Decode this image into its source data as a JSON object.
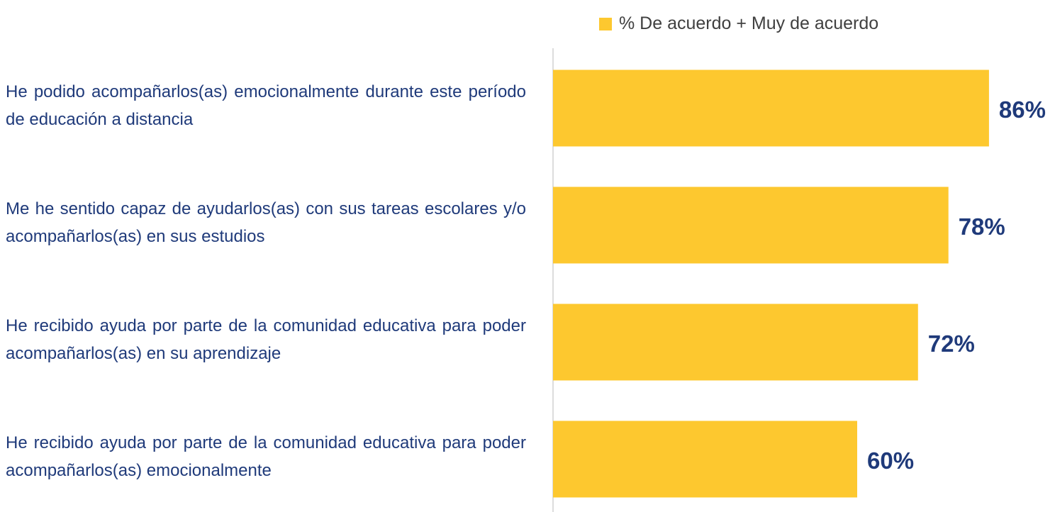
{
  "chart_data": {
    "type": "bar",
    "orientation": "horizontal",
    "legend": "% De acuerdo + Muy de acuerdo",
    "legend_position": "top-right",
    "categories": [
      "He podido acompañarlos(as) emocionalmente durante este período de educación a distancia",
      "Me he sentido capaz de ayudarlos(as) con sus tareas escolares y/o acompañarlos(as) en sus estudios",
      "He recibido ayuda por parte de la comunidad educativa para poder acompañarlos(as) en su aprendizaje",
      "He recibido ayuda por parte de la comunidad educativa para poder acompañarlos(as) emocionalmente"
    ],
    "values": [
      86,
      78,
      72,
      60
    ],
    "value_labels": [
      "86%",
      "78%",
      "72%",
      "60%"
    ],
    "color": "#FDC82F"
  }
}
